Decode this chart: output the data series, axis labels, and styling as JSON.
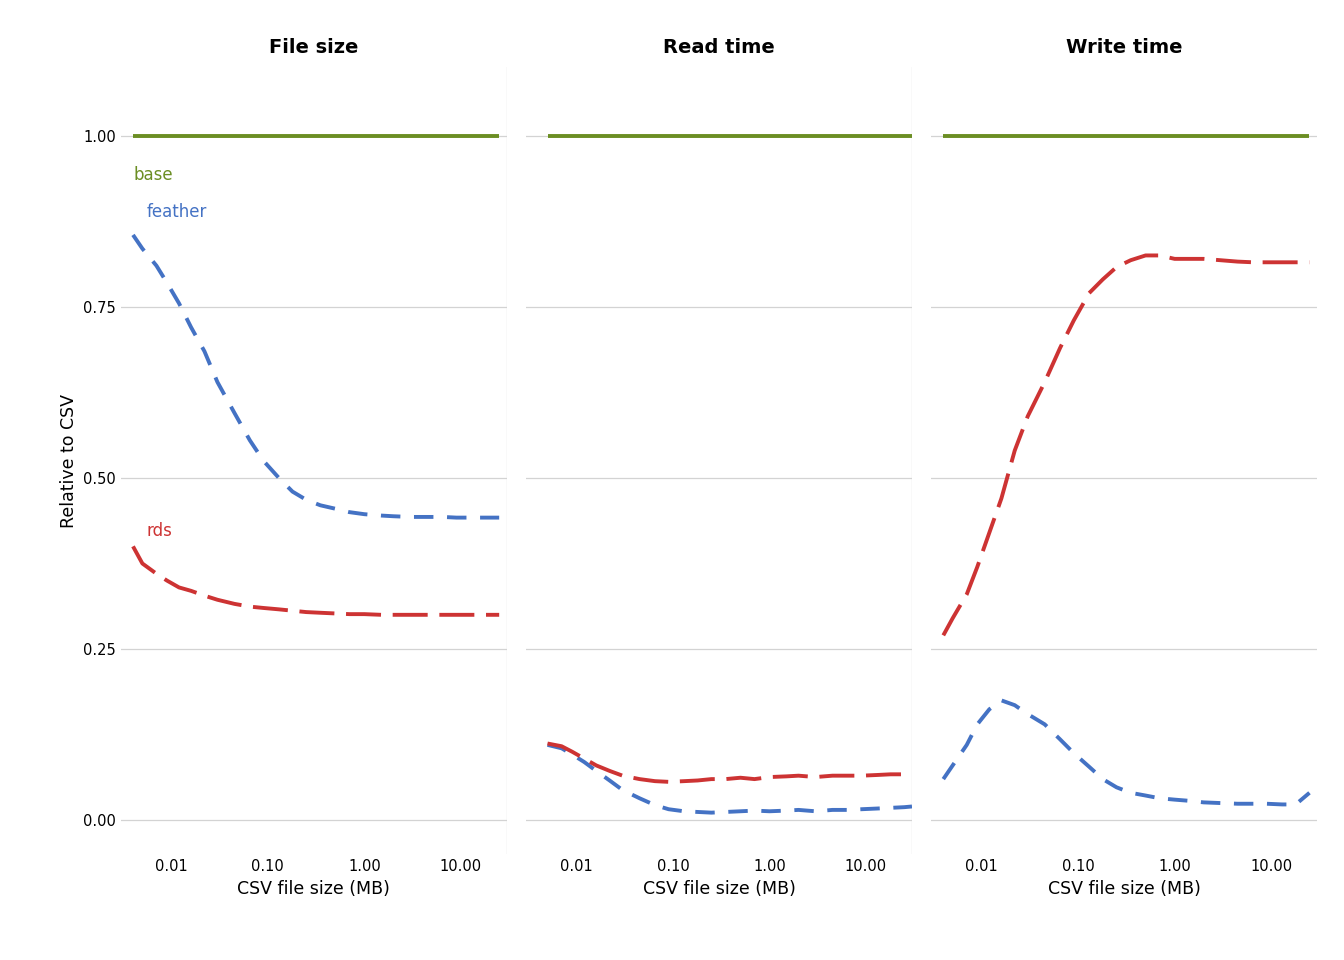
{
  "title_fontsize": 14,
  "ylabel": "Relative to CSV",
  "xlabel": "CSV file size (MB)",
  "col_titles": [
    "File size",
    "Read time",
    "Write time"
  ],
  "colors": {
    "base": "#6b8e23",
    "feather": "#4472c4",
    "rds": "#cd3333"
  },
  "background_color": "#ffffff",
  "grid_color": "#d3d3d3",
  "panels": {
    "file_size": {
      "x": [
        0.004,
        0.005,
        0.007,
        0.009,
        0.012,
        0.016,
        0.022,
        0.03,
        0.045,
        0.065,
        0.09,
        0.13,
        0.18,
        0.25,
        0.35,
        0.5,
        0.7,
        1.0,
        1.5,
        2.0,
        3.0,
        4.5,
        6.5,
        9.0,
        13.0,
        18.0,
        25.0
      ],
      "base": [
        1.0,
        1.0,
        1.0,
        1.0,
        1.0,
        1.0,
        1.0,
        1.0,
        1.0,
        1.0,
        1.0,
        1.0,
        1.0,
        1.0,
        1.0,
        1.0,
        1.0,
        1.0,
        1.0,
        1.0,
        1.0,
        1.0,
        1.0,
        1.0,
        1.0,
        1.0,
        1.0
      ],
      "feather": [
        0.855,
        0.835,
        0.81,
        0.785,
        0.755,
        0.72,
        0.685,
        0.64,
        0.595,
        0.555,
        0.525,
        0.5,
        0.48,
        0.468,
        0.46,
        0.455,
        0.45,
        0.447,
        0.445,
        0.444,
        0.443,
        0.443,
        0.443,
        0.442,
        0.442,
        0.442,
        0.442
      ],
      "rds": [
        0.4,
        0.375,
        0.36,
        0.35,
        0.34,
        0.335,
        0.328,
        0.322,
        0.316,
        0.312,
        0.31,
        0.308,
        0.306,
        0.304,
        0.303,
        0.302,
        0.301,
        0.301,
        0.3,
        0.3,
        0.3,
        0.3,
        0.3,
        0.3,
        0.3,
        0.3,
        0.3
      ]
    },
    "read_time": {
      "x": [
        0.005,
        0.007,
        0.009,
        0.012,
        0.016,
        0.022,
        0.03,
        0.045,
        0.065,
        0.09,
        0.13,
        0.18,
        0.25,
        0.35,
        0.5,
        0.7,
        1.0,
        1.5,
        2.0,
        3.0,
        4.5,
        6.5,
        9.0,
        13.0,
        18.0,
        25.0,
        30.0
      ],
      "base": [
        1.0,
        1.0,
        1.0,
        1.0,
        1.0,
        1.0,
        1.0,
        1.0,
        1.0,
        1.0,
        1.0,
        1.0,
        1.0,
        1.0,
        1.0,
        1.0,
        1.0,
        1.0,
        1.0,
        1.0,
        1.0,
        1.0,
        1.0,
        1.0,
        1.0,
        1.0,
        1.0
      ],
      "feather": [
        0.11,
        0.105,
        0.096,
        0.085,
        0.072,
        0.058,
        0.044,
        0.032,
        0.022,
        0.016,
        0.013,
        0.012,
        0.011,
        0.012,
        0.013,
        0.014,
        0.013,
        0.014,
        0.015,
        0.013,
        0.015,
        0.015,
        0.016,
        0.017,
        0.018,
        0.019,
        0.02
      ],
      "rds": [
        0.112,
        0.108,
        0.1,
        0.09,
        0.08,
        0.072,
        0.065,
        0.06,
        0.057,
        0.056,
        0.057,
        0.058,
        0.06,
        0.06,
        0.062,
        0.06,
        0.063,
        0.064,
        0.065,
        0.063,
        0.065,
        0.065,
        0.065,
        0.066,
        0.067,
        0.067,
        0.067
      ]
    },
    "write_time": {
      "x": [
        0.004,
        0.005,
        0.007,
        0.009,
        0.012,
        0.016,
        0.022,
        0.03,
        0.045,
        0.065,
        0.09,
        0.13,
        0.18,
        0.25,
        0.35,
        0.5,
        0.7,
        1.0,
        1.5,
        2.0,
        3.0,
        4.5,
        6.5,
        9.0,
        13.0,
        18.0,
        25.0
      ],
      "base": [
        1.0,
        1.0,
        1.0,
        1.0,
        1.0,
        1.0,
        1.0,
        1.0,
        1.0,
        1.0,
        1.0,
        1.0,
        1.0,
        1.0,
        1.0,
        1.0,
        1.0,
        1.0,
        1.0,
        1.0,
        1.0,
        1.0,
        1.0,
        1.0,
        1.0,
        1.0,
        1.0
      ],
      "feather": [
        0.06,
        0.08,
        0.11,
        0.14,
        0.162,
        0.175,
        0.168,
        0.155,
        0.14,
        0.118,
        0.098,
        0.078,
        0.06,
        0.048,
        0.04,
        0.036,
        0.032,
        0.03,
        0.028,
        0.026,
        0.025,
        0.024,
        0.024,
        0.024,
        0.023,
        0.023,
        0.04
      ],
      "rds": [
        0.27,
        0.295,
        0.33,
        0.37,
        0.42,
        0.47,
        0.54,
        0.59,
        0.64,
        0.69,
        0.73,
        0.77,
        0.79,
        0.808,
        0.818,
        0.825,
        0.825,
        0.82,
        0.82,
        0.82,
        0.818,
        0.816,
        0.815,
        0.815,
        0.815,
        0.815,
        0.815
      ]
    }
  },
  "ylim": [
    -0.05,
    1.1
  ],
  "yticks": [
    0.0,
    0.25,
    0.5,
    0.75,
    1.0
  ],
  "xlim": [
    0.003,
    30.0
  ],
  "xtick_vals": [
    0.01,
    0.1,
    1.0,
    10.0
  ],
  "xtick_labels": [
    "0.01",
    "0.10",
    "1.00",
    "10.00"
  ]
}
